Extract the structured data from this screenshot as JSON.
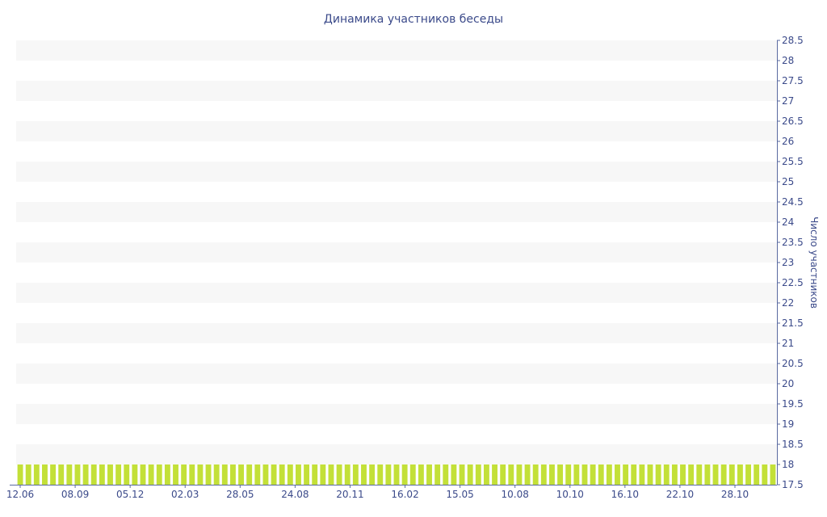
{
  "chart_data": {
    "type": "bar",
    "title": "Динамика участников беседы",
    "ylabel": "Число участников",
    "ylim": [
      17.5,
      28.5
    ],
    "y_ticks": [
      "17.5",
      "18",
      "18.5",
      "19",
      "19.5",
      "20",
      "20.5",
      "21",
      "21.5",
      "22",
      "22.5",
      "23",
      "23.5",
      "24",
      "24.5",
      "25",
      "25.5",
      "26",
      "26.5",
      "27",
      "27.5",
      "28",
      "28.5"
    ],
    "x_tick_labels": [
      "12.06",
      "08.09",
      "05.12",
      "02.03",
      "28.05",
      "24.08",
      "20.11",
      "16.02",
      "15.05",
      "10.08",
      "10.10",
      "16.10",
      "22.10",
      "28.10"
    ],
    "grid": "horizontal bands",
    "y_axis_position": "right",
    "colors": {
      "bar": "#c3e038",
      "band": "#f7f7f7",
      "text": "#3b4a8a",
      "axis": "#5a6aa0"
    },
    "series": [
      {
        "values": [
          18,
          18,
          18,
          18,
          18,
          18,
          18,
          18,
          18,
          18,
          18,
          18,
          18,
          18,
          18,
          18,
          18,
          18,
          18,
          18,
          18,
          18,
          18,
          18,
          18,
          18,
          18,
          18,
          18,
          18,
          18,
          18,
          18,
          18,
          18,
          18,
          18,
          18,
          18,
          18,
          18,
          18,
          18,
          18,
          18,
          18,
          18,
          18,
          18,
          18,
          18,
          18,
          18,
          18,
          18,
          18,
          18,
          18,
          18,
          18,
          18,
          18,
          18,
          18,
          18,
          18,
          18,
          18,
          18,
          18,
          18,
          18,
          18,
          18,
          18,
          18,
          18,
          18,
          18,
          18,
          18,
          18,
          18,
          18,
          18,
          18,
          18,
          18,
          18,
          18,
          18,
          18,
          18
        ]
      }
    ]
  }
}
